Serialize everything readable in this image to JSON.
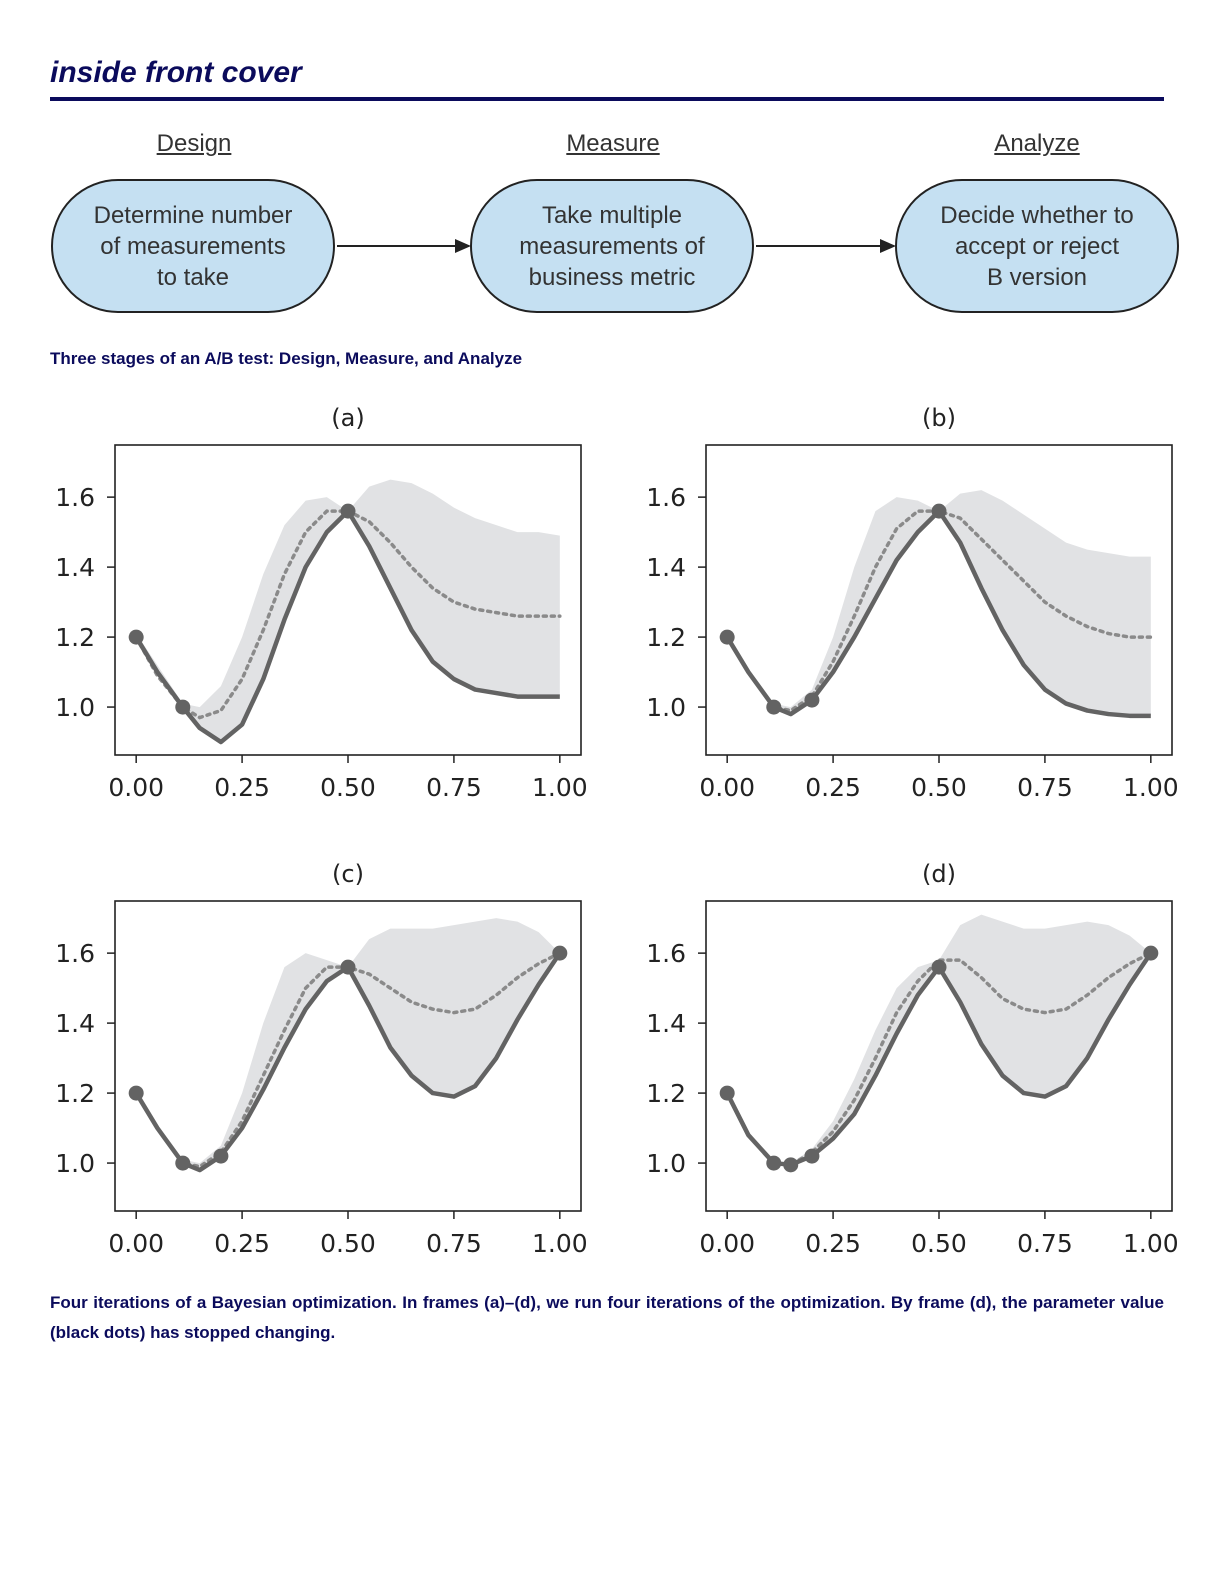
{
  "header": {
    "title": "inside front cover"
  },
  "diagram": {
    "stages": [
      {
        "label": "Design",
        "box": "Determine number of measurements to take",
        "lines": [
          "Determine number",
          "of measurements",
          "to take"
        ]
      },
      {
        "label": "Measure",
        "box": "Take multiple measurements of business metric",
        "lines": [
          "Take multiple",
          "measurements of",
          "business metric"
        ]
      },
      {
        "label": "Analyze",
        "box": "Decide whether to accept or reject B version",
        "lines": [
          "Decide whether to",
          "accept or reject",
          "B version"
        ]
      }
    ],
    "caption": "Three stages of an A/B test: Design, Measure, and Analyze",
    "colors": {
      "box_fill": "#c5e0f2",
      "text": "#0b0b5c"
    }
  },
  "figure_caption": "Four iterations of a Bayesian optimization. In frames (a)–(d), we run four iterations of the optimization. By frame (d), the parameter value (black dots) has stopped changing.",
  "chart_data": [
    {
      "type": "line",
      "title": "(a)",
      "xlim": [
        -0.05,
        1.05
      ],
      "ylim": [
        0.863,
        1.749
      ],
      "xticks": [
        "0.00",
        "0.25",
        "0.50",
        "0.75",
        "1.00"
      ],
      "yticks": [
        "1.0",
        "1.2",
        "1.4",
        "1.6"
      ],
      "x": [
        0,
        0.05,
        0.11,
        0.15,
        0.2,
        0.25,
        0.3,
        0.35,
        0.4,
        0.45,
        0.5,
        0.55,
        0.6,
        0.65,
        0.7,
        0.75,
        0.8,
        0.85,
        0.9,
        0.95,
        1.0
      ],
      "solid": [
        1.2,
        1.1,
        1.0,
        0.94,
        0.9,
        0.95,
        1.08,
        1.25,
        1.4,
        1.5,
        1.56,
        1.46,
        1.34,
        1.22,
        1.13,
        1.08,
        1.05,
        1.04,
        1.03,
        1.03,
        1.03
      ],
      "dotted": [
        1.2,
        1.09,
        1.0,
        0.97,
        0.99,
        1.08,
        1.22,
        1.38,
        1.5,
        1.56,
        1.56,
        1.53,
        1.47,
        1.4,
        1.34,
        1.3,
        1.28,
        1.27,
        1.26,
        1.26,
        1.26
      ],
      "band_upper": [
        1.21,
        1.12,
        1.01,
        1.0,
        1.06,
        1.2,
        1.38,
        1.52,
        1.59,
        1.6,
        1.56,
        1.63,
        1.65,
        1.64,
        1.61,
        1.57,
        1.54,
        1.52,
        1.5,
        1.5,
        1.49
      ],
      "points": [
        [
          0,
          1.2
        ],
        [
          0.11,
          1.0
        ],
        [
          0.5,
          1.56
        ]
      ]
    },
    {
      "type": "line",
      "title": "(b)",
      "xlim": [
        -0.05,
        1.05
      ],
      "ylim": [
        0.863,
        1.749
      ],
      "xticks": [
        "0.00",
        "0.25",
        "0.50",
        "0.75",
        "1.00"
      ],
      "yticks": [
        "1.0",
        "1.2",
        "1.4",
        "1.6"
      ],
      "x": [
        0,
        0.05,
        0.11,
        0.15,
        0.2,
        0.25,
        0.3,
        0.35,
        0.4,
        0.45,
        0.5,
        0.55,
        0.6,
        0.65,
        0.7,
        0.75,
        0.8,
        0.85,
        0.9,
        0.95,
        1.0
      ],
      "solid": [
        1.2,
        1.1,
        1.0,
        0.98,
        1.02,
        1.1,
        1.2,
        1.31,
        1.42,
        1.5,
        1.56,
        1.47,
        1.34,
        1.22,
        1.12,
        1.05,
        1.01,
        0.99,
        0.98,
        0.975,
        0.975
      ],
      "dotted": [
        1.2,
        1.1,
        1.0,
        0.99,
        1.03,
        1.13,
        1.26,
        1.4,
        1.51,
        1.56,
        1.56,
        1.54,
        1.48,
        1.42,
        1.36,
        1.3,
        1.26,
        1.23,
        1.21,
        1.2,
        1.2
      ],
      "band_upper": [
        1.21,
        1.11,
        1.01,
        1.0,
        1.05,
        1.2,
        1.4,
        1.56,
        1.6,
        1.59,
        1.56,
        1.61,
        1.62,
        1.59,
        1.55,
        1.51,
        1.47,
        1.45,
        1.44,
        1.43,
        1.43
      ],
      "points": [
        [
          0,
          1.2
        ],
        [
          0.11,
          1.0
        ],
        [
          0.2,
          1.02
        ],
        [
          0.5,
          1.56
        ]
      ]
    },
    {
      "type": "line",
      "title": "(c)",
      "xlim": [
        -0.05,
        1.05
      ],
      "ylim": [
        0.863,
        1.749
      ],
      "xticks": [
        "0.00",
        "0.25",
        "0.50",
        "0.75",
        "1.00"
      ],
      "yticks": [
        "1.0",
        "1.2",
        "1.4",
        "1.6"
      ],
      "x": [
        0,
        0.05,
        0.11,
        0.15,
        0.2,
        0.25,
        0.3,
        0.35,
        0.4,
        0.45,
        0.5,
        0.55,
        0.6,
        0.65,
        0.7,
        0.75,
        0.8,
        0.85,
        0.9,
        0.95,
        1.0
      ],
      "solid": [
        1.2,
        1.1,
        1.0,
        0.98,
        1.02,
        1.1,
        1.21,
        1.33,
        1.44,
        1.52,
        1.56,
        1.45,
        1.33,
        1.25,
        1.2,
        1.19,
        1.22,
        1.3,
        1.41,
        1.51,
        1.6
      ],
      "dotted": [
        1.2,
        1.1,
        1.0,
        0.99,
        1.03,
        1.12,
        1.25,
        1.38,
        1.5,
        1.56,
        1.56,
        1.54,
        1.5,
        1.46,
        1.44,
        1.43,
        1.44,
        1.48,
        1.53,
        1.57,
        1.6
      ],
      "band_upper": [
        1.21,
        1.11,
        1.01,
        1.0,
        1.05,
        1.2,
        1.4,
        1.56,
        1.6,
        1.58,
        1.56,
        1.64,
        1.67,
        1.67,
        1.67,
        1.68,
        1.69,
        1.7,
        1.69,
        1.66,
        1.6
      ],
      "points": [
        [
          0,
          1.2
        ],
        [
          0.11,
          1.0
        ],
        [
          0.2,
          1.02
        ],
        [
          0.5,
          1.56
        ],
        [
          1.0,
          1.6
        ]
      ]
    },
    {
      "type": "line",
      "title": "(d)",
      "xlim": [
        -0.05,
        1.05
      ],
      "ylim": [
        0.863,
        1.749
      ],
      "xticks": [
        "0.00",
        "0.25",
        "0.50",
        "0.75",
        "1.00"
      ],
      "yticks": [
        "1.0",
        "1.2",
        "1.4",
        "1.6"
      ],
      "x": [
        0,
        0.05,
        0.11,
        0.15,
        0.2,
        0.25,
        0.3,
        0.35,
        0.4,
        0.45,
        0.5,
        0.55,
        0.6,
        0.65,
        0.7,
        0.75,
        0.8,
        0.85,
        0.9,
        0.95,
        1.0
      ],
      "solid": [
        1.2,
        1.08,
        1.0,
        0.995,
        1.02,
        1.07,
        1.14,
        1.25,
        1.37,
        1.48,
        1.56,
        1.46,
        1.34,
        1.25,
        1.2,
        1.19,
        1.22,
        1.3,
        1.41,
        1.51,
        1.6
      ],
      "dotted": [
        1.2,
        1.08,
        1.0,
        0.995,
        1.03,
        1.09,
        1.18,
        1.3,
        1.43,
        1.52,
        1.58,
        1.58,
        1.53,
        1.47,
        1.44,
        1.43,
        1.44,
        1.48,
        1.53,
        1.57,
        1.6
      ],
      "band_upper": [
        1.2,
        1.08,
        1.0,
        1.0,
        1.04,
        1.12,
        1.24,
        1.38,
        1.5,
        1.56,
        1.58,
        1.68,
        1.71,
        1.69,
        1.67,
        1.67,
        1.68,
        1.69,
        1.68,
        1.65,
        1.6
      ],
      "points": [
        [
          0,
          1.2
        ],
        [
          0.11,
          1.0
        ],
        [
          0.15,
          0.995
        ],
        [
          0.2,
          1.02
        ],
        [
          0.5,
          1.56
        ],
        [
          1.0,
          1.6
        ]
      ]
    }
  ],
  "chart_colors": {
    "line": "#636363",
    "band": "#e1e2e4",
    "dotted": "#8a8a8a"
  }
}
